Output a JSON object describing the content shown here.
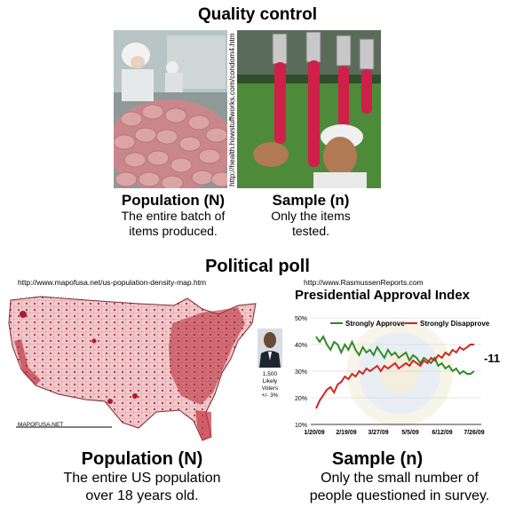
{
  "quality": {
    "title": "Quality control",
    "source_url": "http://health.howstuffworks.com/condom4.htm",
    "population_title": "Population (N)",
    "population_text_1": "The entire batch of",
    "population_text_2": "items produced.",
    "sample_title": "Sample (n)",
    "sample_text_1": "Only the items",
    "sample_text_2": "tested."
  },
  "political": {
    "title": "Political poll",
    "map_url": "http://www.mapofusa.net/us-population-density-map.htm",
    "map_credit": "MAPOFUSA.NET",
    "chart_url": "http://www.RasmussenReports.com",
    "population_title": "Population (N)",
    "population_text_1": "The entire US population",
    "population_text_2": "over 18 years old.",
    "sample_title": "Sample (n)",
    "sample_text_1": "Only the small number of",
    "sample_text_2": "people questioned in survey.",
    "poll_note_1": "1,500",
    "poll_note_2": "Likely",
    "poll_note_3": "Voters",
    "poll_note_4": "+/- 3%"
  },
  "chart_data": {
    "type": "line",
    "title": "Presidential Approval Index",
    "y_ticks": [
      "50%",
      "40%",
      "30%",
      "20%",
      "10%"
    ],
    "x_ticks": [
      "1/20/09",
      "2/19/09",
      "3/27/09",
      "5/5/09",
      "6/12/09",
      "7/26/09"
    ],
    "ylim": [
      10,
      50
    ],
    "annotation": "-11",
    "colors": {
      "approve": "#2e8b22",
      "disapprove": "#d42020"
    },
    "series": [
      {
        "name": "Strongly Approve",
        "values": [
          43,
          41,
          43,
          40,
          38,
          41,
          40,
          37,
          40,
          38,
          41,
          38,
          36,
          39,
          37,
          38,
          36,
          39,
          37,
          35,
          38,
          36,
          37,
          35,
          36,
          37,
          34,
          36,
          35,
          33,
          35,
          34,
          33,
          35,
          32,
          33,
          31,
          32,
          30,
          31,
          29,
          30,
          29,
          29,
          30
        ]
      },
      {
        "name": "Strongly Disapprove",
        "values": [
          16,
          19,
          21,
          23,
          24,
          22,
          25,
          26,
          28,
          27,
          29,
          28,
          30,
          29,
          31,
          30,
          31,
          32,
          30,
          32,
          31,
          32,
          33,
          31,
          32,
          33,
          32,
          34,
          33,
          32,
          34,
          33,
          35,
          34,
          36,
          35,
          37,
          36,
          38,
          37,
          39,
          38,
          39,
          40,
          40
        ]
      }
    ]
  }
}
